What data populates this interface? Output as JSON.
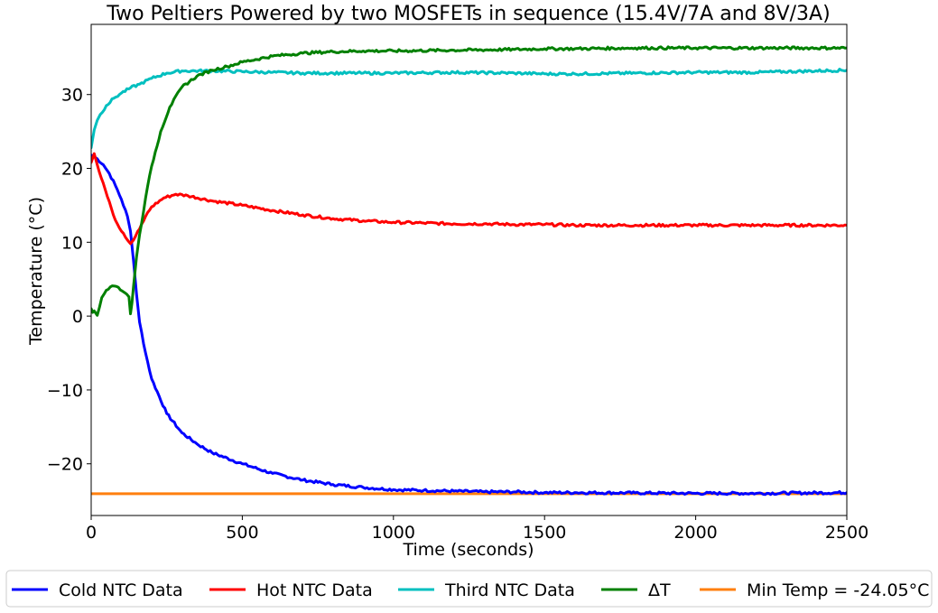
{
  "chart_data": {
    "type": "line",
    "title": "Two Peltiers Powered by two MOSFETs in sequence (15.4V/7A and 8V/3A)",
    "xlabel": "Time (seconds)",
    "ylabel": "Temperature (°C)",
    "xlim": [
      0,
      2500
    ],
    "ylim": [
      -27,
      39.5
    ],
    "xticks": [
      0,
      500,
      1000,
      1500,
      2000,
      2500
    ],
    "xtick_labels": [
      "0",
      "500",
      "1000",
      "1500",
      "2000",
      "2500"
    ],
    "yticks": [
      -20,
      -10,
      0,
      10,
      20,
      30
    ],
    "ytick_labels": [
      "−20",
      "−10",
      "0",
      "10",
      "20",
      "30"
    ],
    "grid": false,
    "legend_position": "bottom",
    "series": [
      {
        "name": "Cold NTC Data",
        "color": "#0000ff",
        "x": [
          0,
          20,
          40,
          60,
          80,
          100,
          120,
          130,
          140,
          150,
          160,
          180,
          200,
          250,
          300,
          350,
          400,
          500,
          600,
          700,
          800,
          900,
          1000,
          1100,
          1200,
          1300,
          1400,
          1500,
          1600,
          1800,
          2000,
          2200,
          2500
        ],
        "y": [
          21.8,
          21.3,
          20.5,
          19.3,
          17.7,
          15.8,
          13.5,
          11.5,
          7.5,
          3.0,
          -0.8,
          -5.0,
          -8.5,
          -13.2,
          -15.8,
          -17.3,
          -18.5,
          -20.0,
          -21.3,
          -22.2,
          -22.8,
          -23.2,
          -23.5,
          -23.6,
          -23.7,
          -23.8,
          -23.8,
          -23.9,
          -23.9,
          -23.95,
          -24.0,
          -24.0,
          -23.9
        ]
      },
      {
        "name": "Hot NTC Data",
        "color": "#ff0000",
        "x": [
          0,
          10,
          20,
          40,
          60,
          80,
          100,
          120,
          130,
          140,
          160,
          180,
          200,
          240,
          280,
          320,
          400,
          500,
          600,
          700,
          800,
          900,
          1000,
          1100,
          1200,
          1300,
          1400,
          1500,
          1600,
          1800,
          2000,
          2200,
          2500
        ],
        "y": [
          20.8,
          22.0,
          20.5,
          18.0,
          15.5,
          13.0,
          11.5,
          10.3,
          9.8,
          10.3,
          11.8,
          13.5,
          14.8,
          16.0,
          16.5,
          16.3,
          15.6,
          15.0,
          14.3,
          13.7,
          13.2,
          12.9,
          12.7,
          12.6,
          12.5,
          12.5,
          12.4,
          12.4,
          12.3,
          12.3,
          12.3,
          12.3,
          12.3
        ]
      },
      {
        "name": "Third NTC Data",
        "color": "#00bfbf",
        "x": [
          0,
          5,
          10,
          20,
          30,
          50,
          75,
          100,
          130,
          160,
          200,
          250,
          300,
          400,
          500,
          600,
          700,
          800,
          900,
          1000,
          1200,
          1400,
          1500,
          1600,
          1800,
          2000,
          2200,
          2500
        ],
        "y": [
          22.8,
          24.0,
          25.2,
          26.5,
          27.3,
          28.5,
          29.5,
          30.2,
          30.9,
          31.4,
          32.2,
          32.9,
          33.2,
          33.2,
          33.1,
          33.0,
          32.9,
          32.9,
          32.9,
          32.9,
          33.0,
          32.9,
          32.8,
          32.8,
          32.9,
          33.0,
          33.0,
          33.3
        ]
      },
      {
        "name": "ΔT",
        "color": "#008000",
        "x": [
          0,
          5,
          10,
          20,
          35,
          50,
          70,
          90,
          110,
          125,
          130,
          135,
          140,
          150,
          160,
          180,
          200,
          230,
          260,
          300,
          350,
          400,
          450,
          500,
          600,
          700,
          800,
          900,
          1000,
          1200,
          1400,
          1500,
          1600,
          1800,
          2000,
          2200,
          2500
        ],
        "y": [
          1.0,
          0.5,
          0.7,
          0.1,
          2.5,
          3.5,
          4.1,
          3.9,
          3.2,
          2.6,
          0.3,
          1.8,
          4.0,
          8.0,
          11.0,
          16.0,
          20.3,
          25.0,
          28.3,
          31.0,
          32.5,
          33.3,
          33.8,
          34.4,
          35.2,
          35.6,
          35.8,
          35.9,
          35.9,
          36.0,
          36.1,
          36.2,
          36.2,
          36.3,
          36.3,
          36.3,
          36.3
        ]
      },
      {
        "name": "Min Temp = -24.05°C",
        "color": "#ff7f0e",
        "x": [
          0,
          2500
        ],
        "y": [
          -24.05,
          -24.05
        ]
      }
    ]
  }
}
